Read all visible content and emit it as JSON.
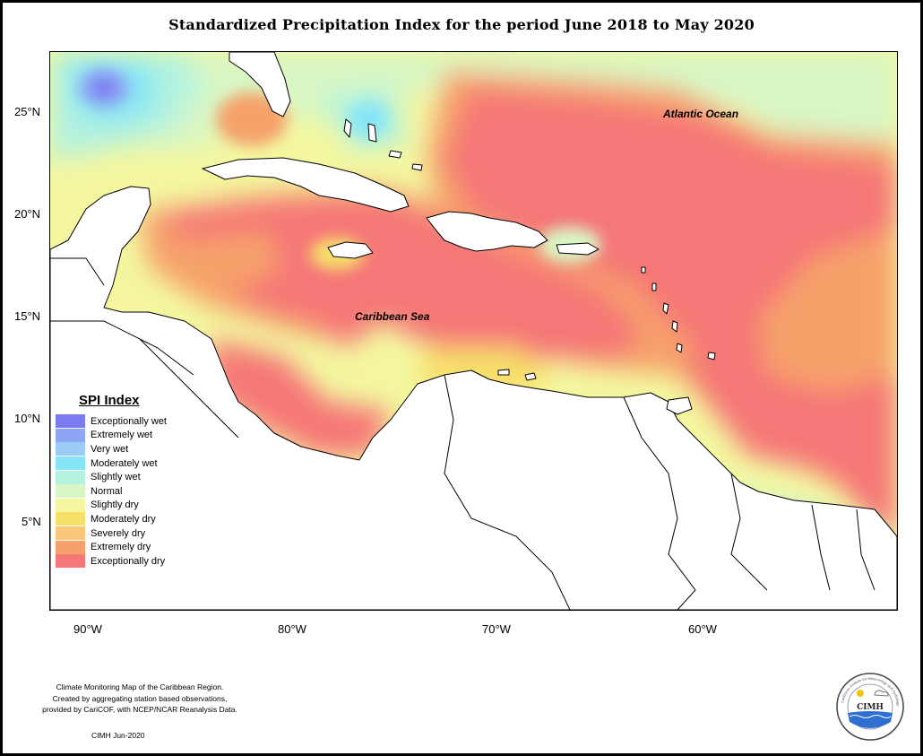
{
  "title": "Standardized Precipitation Index for the period June 2018 to May 2020",
  "lat_labels": [
    "25°N",
    "20°N",
    "15°N",
    "10°N",
    "5°N"
  ],
  "lon_labels": [
    "90°W",
    "80°W",
    "70°W",
    "60°W"
  ],
  "ocean_labels": {
    "atlantic": "Atlantic Ocean",
    "caribbean": "Caribbean Sea"
  },
  "legend": {
    "title": "SPI Index",
    "items": [
      {
        "label": "Exceptionally wet",
        "color": "#7b7bf0"
      },
      {
        "label": "Extremely wet",
        "color": "#8ea5f5"
      },
      {
        "label": "Very wet",
        "color": "#9ccbf7"
      },
      {
        "label": "Moderately wet",
        "color": "#86e6f5"
      },
      {
        "label": "Slightly wet",
        "color": "#b2f2df"
      },
      {
        "label": "Normal",
        "color": "#d8f7c4"
      },
      {
        "label": "Slightly dry",
        "color": "#f4f7a0"
      },
      {
        "label": "Moderately dry",
        "color": "#f7e06a"
      },
      {
        "label": "Severely dry",
        "color": "#f8c777"
      },
      {
        "label": "Extremely dry",
        "color": "#f6a16b"
      },
      {
        "label": "Exceptionally dry",
        "color": "#f57777"
      }
    ]
  },
  "footer": {
    "note_lines": [
      "Climate Monitoring Map of the Caribbean Region.",
      "Created by aggregating station based observations,",
      "provided by CariCOF, with NCEP/NCAR Reanalysis Data."
    ],
    "credit": "CIMH Jun-2020"
  },
  "logo": {
    "text": "CIMH",
    "ring_text": "Caribbean Institute for Meteorology and Hydrology"
  }
}
